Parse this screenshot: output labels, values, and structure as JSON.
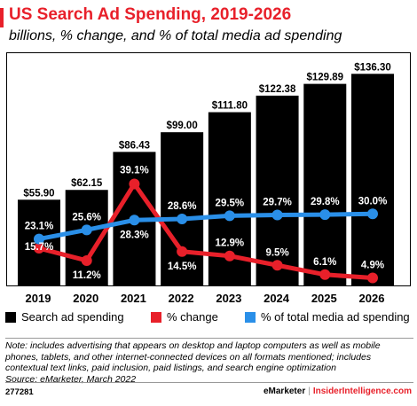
{
  "header": {
    "title": "US Search Ad Spending, 2019-2026",
    "subtitle": "billions, % change, and % of total media ad spending"
  },
  "colors": {
    "accent": "#e8202a",
    "bar": "#000000",
    "change": "#e8202a",
    "share": "#2a8fe8"
  },
  "chart_data": {
    "type": "bar",
    "categories": [
      "2019",
      "2020",
      "2021",
      "2022",
      "2023",
      "2024",
      "2025",
      "2026"
    ],
    "series": [
      {
        "name": "Search ad spending",
        "type": "bar",
        "values": [
          55.9,
          62.15,
          86.43,
          99.0,
          111.8,
          122.38,
          129.89,
          136.3
        ],
        "labels": [
          "$55.90",
          "$62.15",
          "$86.43",
          "$99.00",
          "$111.80",
          "$122.38",
          "$129.89",
          "$136.30"
        ]
      },
      {
        "name": "% change",
        "type": "line",
        "values": [
          15.7,
          11.2,
          39.1,
          14.5,
          12.9,
          9.5,
          6.1,
          4.9
        ],
        "labels": [
          "15.7%",
          "11.2%",
          "39.1%",
          "14.5%",
          "12.9%",
          "9.5%",
          "6.1%",
          "4.9%"
        ]
      },
      {
        "name": "% of total media ad spending",
        "type": "line",
        "values": [
          23.1,
          25.6,
          28.3,
          28.6,
          29.5,
          29.7,
          29.8,
          30.0
        ],
        "labels": [
          "23.1%",
          "25.6%",
          "28.3%",
          "28.6%",
          "29.5%",
          "29.7%",
          "29.8%",
          "30.0%"
        ]
      }
    ],
    "ylim": [
      0,
      150
    ],
    "grid": false,
    "legend_position": "bottom"
  },
  "legend": {
    "items": [
      {
        "label": "Search ad spending",
        "color": "#000000"
      },
      {
        "label": "% change",
        "color": "#e8202a"
      },
      {
        "label": "% of total media ad spending",
        "color": "#2a8fe8"
      }
    ]
  },
  "note": "Note: includes advertising that appears on desktop and laptop computers as well as mobile phones, tablets, and other internet-connected devices on all formats mentioned; includes contextual text links, paid inclusion, paid listings, and search engine optimization",
  "source": "Source: eMarketer, March 2022",
  "footer": {
    "id": "277281",
    "brand1": "eMarketer",
    "separator": "|",
    "brand2": "InsiderIntelligence.com"
  }
}
